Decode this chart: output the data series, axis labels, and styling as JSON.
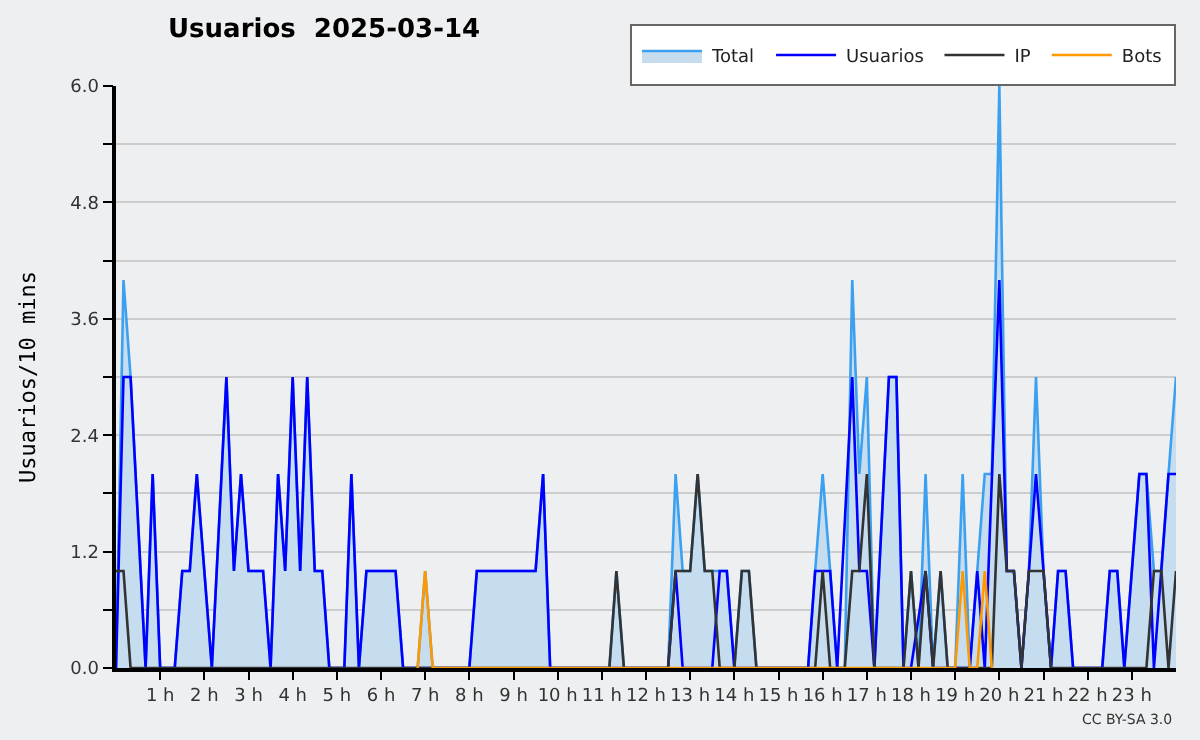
{
  "chart_data": {
    "type": "line",
    "title": "Usuarios  2025-03-14",
    "ylabel": "Usuarios/10 mins",
    "xlim": [
      0,
      24
    ],
    "xticks": [
      {
        "value": 1,
        "label": "1 h"
      },
      {
        "value": 2,
        "label": "2 h"
      },
      {
        "value": 3,
        "label": "3 h"
      },
      {
        "value": 4,
        "label": "4 h"
      },
      {
        "value": 5,
        "label": "5 h"
      },
      {
        "value": 6,
        "label": "6 h"
      },
      {
        "value": 7,
        "label": "7 h"
      },
      {
        "value": 8,
        "label": "8 h"
      },
      {
        "value": 9,
        "label": "9 h"
      },
      {
        "value": 10,
        "label": "10 h"
      },
      {
        "value": 11,
        "label": "11 h"
      },
      {
        "value": 12,
        "label": "12 h"
      },
      {
        "value": 13,
        "label": "13 h"
      },
      {
        "value": 14,
        "label": "14 h"
      },
      {
        "value": 15,
        "label": "15 h"
      },
      {
        "value": 16,
        "label": "16 h"
      },
      {
        "value": 17,
        "label": "17 h"
      },
      {
        "value": 18,
        "label": "18 h"
      },
      {
        "value": 19,
        "label": "19 h"
      },
      {
        "value": 20,
        "label": "20 h"
      },
      {
        "value": 21,
        "label": "21 h"
      },
      {
        "value": 22,
        "label": "22 h"
      },
      {
        "value": 23,
        "label": "23 h"
      }
    ],
    "ylim": [
      0,
      6
    ],
    "yticks": [
      {
        "value": 0,
        "label": "0.0"
      },
      {
        "value": 0.6,
        "label": null
      },
      {
        "value": 1.2,
        "label": "1.2"
      },
      {
        "value": 1.8,
        "label": null
      },
      {
        "value": 2.4,
        "label": "2.4"
      },
      {
        "value": 3,
        "label": null
      },
      {
        "value": 3.6,
        "label": "3.6"
      },
      {
        "value": 4.2,
        "label": null
      },
      {
        "value": 4.8,
        "label": "4.8"
      },
      {
        "value": 5.4,
        "label": null
      },
      {
        "value": 6,
        "label": "6.0"
      }
    ],
    "grid": "y",
    "legend": "top right",
    "marker": "none",
    "annotations": [
      "CC BY-SA 3.0"
    ],
    "series": [
      {
        "name": "Total",
        "type": "area",
        "color": "#3ca0f0",
        "x": [
          0,
          0.17,
          0.33,
          0.67,
          0.83,
          1.0,
          1.33,
          1.5,
          1.67,
          1.83,
          2.17,
          2.5,
          2.67,
          2.83,
          3.0,
          3.33,
          3.5,
          3.67,
          3.83,
          4.0,
          4.17,
          4.33,
          4.5,
          4.67,
          4.83,
          5.17,
          5.33,
          5.5,
          5.67,
          6.33,
          6.5,
          6.83,
          7.0,
          7.17,
          8.0,
          8.17,
          9.5,
          9.67,
          9.83,
          11.17,
          11.33,
          11.5,
          12.5,
          12.67,
          12.83,
          13.0,
          13.17,
          13.33,
          13.5,
          13.67,
          13.83,
          14.0,
          14.17,
          14.33,
          14.5,
          15.67,
          15.83,
          16.0,
          16.17,
          16.33,
          16.5,
          16.67,
          16.83,
          17.0,
          17.17,
          17.5,
          17.67,
          17.83,
          18.0,
          18.17,
          18.33,
          18.5,
          18.67,
          18.83,
          19.0,
          19.17,
          19.33,
          19.5,
          19.67,
          19.83,
          20.0,
          20.17,
          20.33,
          20.5,
          20.67,
          20.83,
          21.0,
          21.17,
          21.33,
          21.5,
          21.67,
          22.33,
          22.5,
          22.67,
          22.83,
          23.17,
          23.33,
          23.5,
          23.67,
          23.83,
          24.0
        ],
        "values": [
          0,
          4,
          3,
          0,
          2,
          0,
          0,
          1,
          1,
          2,
          0,
          3,
          1,
          2,
          1,
          1,
          0,
          2,
          1,
          3,
          1,
          3,
          1,
          1,
          0,
          0,
          2,
          0,
          1,
          1,
          0,
          0,
          1,
          0,
          0,
          1,
          1,
          2,
          0,
          0,
          1,
          0,
          0,
          2,
          1,
          1,
          2,
          1,
          1,
          1,
          1,
          0,
          1,
          1,
          0,
          0,
          1,
          2,
          1,
          0,
          0,
          4,
          2,
          3,
          0,
          3,
          3,
          0,
          1,
          0,
          2,
          0,
          1,
          0,
          0,
          2,
          0,
          1,
          2,
          2,
          6,
          1,
          1,
          0,
          1,
          3,
          1,
          0,
          1,
          1,
          0,
          0,
          1,
          1,
          0,
          2,
          2,
          1,
          1,
          2,
          3
        ]
      },
      {
        "name": "Usuarios",
        "color": "#0000ff",
        "x": [
          0,
          0.17,
          0.33,
          0.67,
          0.83,
          1.0,
          1.33,
          1.5,
          1.67,
          1.83,
          2.17,
          2.5,
          2.67,
          2.83,
          3.0,
          3.33,
          3.5,
          3.67,
          3.83,
          4.0,
          4.17,
          4.33,
          4.5,
          4.67,
          4.83,
          5.17,
          5.33,
          5.5,
          5.67,
          6.33,
          6.5,
          8.0,
          8.17,
          9.5,
          9.67,
          9.83,
          12.5,
          12.67,
          12.83,
          13.5,
          13.67,
          13.83,
          14.0,
          15.67,
          15.83,
          16.17,
          16.33,
          16.67,
          16.83,
          17.0,
          17.17,
          17.5,
          17.67,
          17.83,
          18.0,
          18.33,
          18.5,
          19.33,
          19.5,
          19.67,
          20.0,
          20.17,
          20.33,
          20.5,
          20.67,
          20.83,
          21.17,
          21.33,
          21.5,
          21.67,
          22.33,
          22.5,
          22.67,
          22.83,
          23.17,
          23.33,
          23.5,
          23.83,
          24.0
        ],
        "values": [
          0,
          3,
          3,
          0,
          2,
          0,
          0,
          1,
          1,
          2,
          0,
          3,
          1,
          2,
          1,
          1,
          0,
          2,
          1,
          3,
          1,
          3,
          1,
          1,
          0,
          0,
          2,
          0,
          1,
          1,
          0,
          0,
          1,
          1,
          2,
          0,
          0,
          1,
          0,
          0,
          1,
          1,
          0,
          0,
          1,
          1,
          0,
          3,
          1,
          1,
          0,
          3,
          3,
          0,
          0,
          1,
          0,
          0,
          1,
          0,
          4,
          1,
          1,
          0,
          1,
          2,
          0,
          1,
          1,
          0,
          0,
          1,
          1,
          0,
          2,
          2,
          0,
          2,
          2
        ]
      },
      {
        "name": "IP",
        "color": "#333333",
        "x": [
          0,
          0.17,
          0.33,
          11.17,
          11.33,
          11.5,
          12.5,
          12.67,
          12.83,
          13.0,
          13.17,
          13.33,
          13.5,
          13.67,
          14.0,
          14.17,
          14.33,
          14.5,
          15.83,
          16.0,
          16.17,
          16.5,
          16.67,
          16.83,
          17.0,
          17.17,
          17.83,
          18.0,
          18.17,
          18.33,
          18.5,
          18.67,
          18.83,
          19.83,
          20.0,
          20.17,
          20.33,
          20.5,
          20.67,
          21.0,
          21.17,
          23.33,
          23.5,
          23.67,
          23.83,
          24.0
        ],
        "values": [
          1,
          1,
          0,
          0,
          1,
          0,
          0,
          1,
          1,
          1,
          2,
          1,
          1,
          0,
          0,
          1,
          1,
          0,
          0,
          1,
          0,
          0,
          1,
          1,
          2,
          0,
          0,
          1,
          0,
          1,
          0,
          1,
          0,
          0,
          2,
          1,
          1,
          0,
          1,
          1,
          0,
          0,
          1,
          1,
          0,
          1
        ]
      },
      {
        "name": "Bots",
        "color": "#ff9900",
        "x": [
          6.83,
          7.0,
          7.17,
          19.0,
          19.17,
          19.33,
          19.5,
          19.67,
          19.83
        ],
        "values": [
          0,
          1,
          0,
          0,
          1,
          0,
          0,
          1,
          0
        ]
      }
    ]
  }
}
